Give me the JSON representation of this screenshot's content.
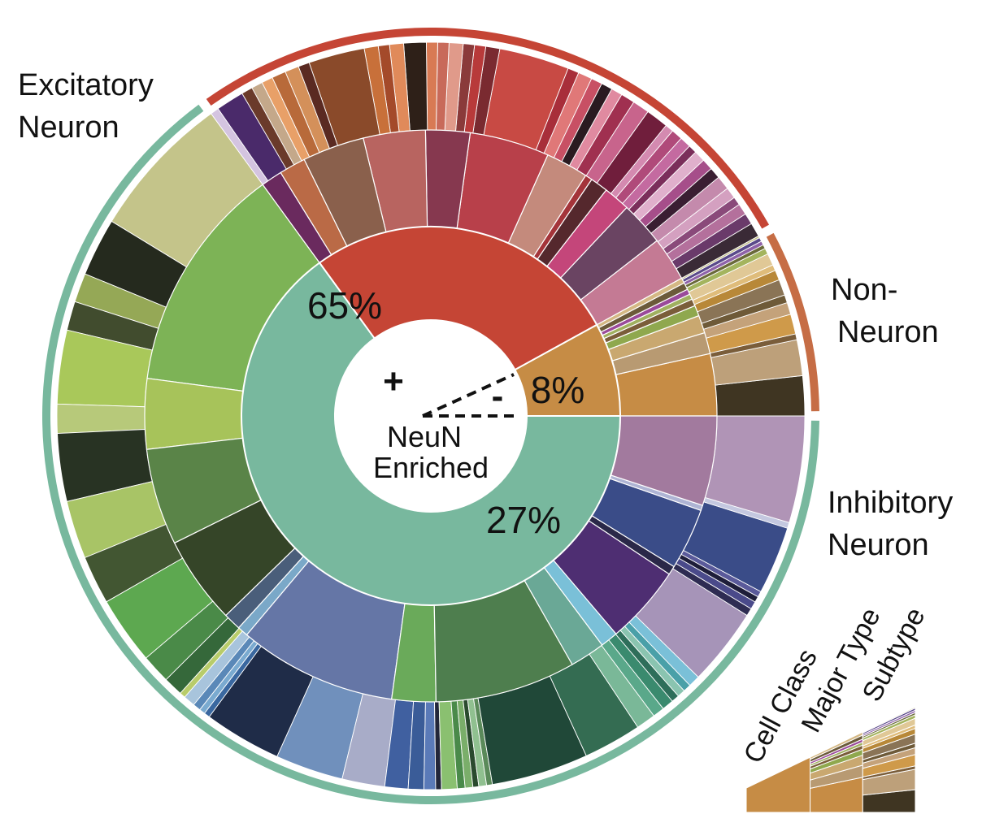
{
  "chart_data": {
    "type": "sunburst",
    "center_label": [
      "NeuN",
      "Enriched"
    ],
    "neun_signs": {
      "positive": "+",
      "negative": "-"
    },
    "class_labels": [
      {
        "id": "exc",
        "text": [
          "Excitatory",
          "Neuron"
        ]
      },
      {
        "id": "non",
        "text": [
          "Non-",
          "Neuron"
        ]
      },
      {
        "id": "inh",
        "text": [
          "Inhibitory",
          "Neuron"
        ]
      }
    ],
    "cell_class": [
      {
        "id": "exc",
        "value": 65,
        "label": "65%",
        "color": "#78b89e",
        "ring_color": "#78b89e"
      },
      {
        "id": "non",
        "value": 8,
        "label": "8%",
        "color": "#c68c45",
        "ring_color": "#c66d45"
      },
      {
        "id": "inh",
        "value": 27,
        "label": "27%",
        "color": "#c54535",
        "ring_color": "#c54535"
      }
    ],
    "legend_levels": [
      "Cell Class",
      "Major Type",
      "Subtype"
    ],
    "major_types": {
      "non": [
        {
          "color": "#c68c45",
          "value": 3.5
        },
        {
          "color": "#b89a72",
          "value": 1.2
        },
        {
          "color": "#c9a870",
          "value": 1.0
        },
        {
          "color": "#8fa84e",
          "value": 0.6
        },
        {
          "color": "#7a5d3a",
          "value": 0.4
        },
        {
          "color": "#a0b060",
          "value": 0.3
        },
        {
          "color": "#9a4a9a",
          "value": 0.3
        },
        {
          "color": "#6b5a3a",
          "value": 0.4
        },
        {
          "color": "#d4b884",
          "value": 0.3
        }
      ],
      "exc": [
        {
          "color": "#7db356",
          "value": 13.0
        },
        {
          "color": "#a7c35a",
          "value": 4.0
        },
        {
          "color": "#5a8448",
          "value": 5.5
        },
        {
          "color": "#354528",
          "value": 5.0
        },
        {
          "color": "#4a5e7a",
          "value": 1.0
        },
        {
          "color": "#7aa8c8",
          "value": 0.6
        },
        {
          "color": "#6576a6",
          "value": 9.0
        },
        {
          "color": "#6aaa5a",
          "value": 2.5
        },
        {
          "color": "#4e7e4e",
          "value": 8.0
        },
        {
          "color": "#6aa896",
          "value": 2.0
        },
        {
          "color": "#7ac0d8",
          "value": 1.0
        },
        {
          "color": "#4e2e72",
          "value": 4.5
        },
        {
          "color": "#2a2848",
          "value": 0.5
        },
        {
          "color": "#3a4c88",
          "value": 3.5
        },
        {
          "color": "#aeb4d4",
          "value": 0.3
        },
        {
          "color": "#a27a9e",
          "value": 5.1
        }
      ],
      "inh": [
        {
          "color": "#c47a94",
          "value": 2.5
        },
        {
          "color": "#6a4462",
          "value": 2.5
        },
        {
          "color": "#c4467a",
          "value": 1.5
        },
        {
          "color": "#55282d",
          "value": 1.0
        },
        {
          "color": "#a4343a",
          "value": 0.4
        },
        {
          "color": "#c48a7c",
          "value": 2.4
        },
        {
          "color": "#b8404a",
          "value": 4.5
        },
        {
          "color": "#86384f",
          "value": 2.5
        },
        {
          "color": "#b86460",
          "value": 3.5
        },
        {
          "color": "#8a604c",
          "value": 3.5
        },
        {
          "color": "#ba6a46",
          "value": 1.5
        },
        {
          "color": "#6a2a5e",
          "value": 1.2
        }
      ]
    },
    "subtypes": {
      "non": [
        {
          "color": "#3f3522",
          "value": 2.0
        },
        {
          "color": "#bda07a",
          "value": 1.8
        },
        {
          "color": "#7a5d3a",
          "value": 0.3
        },
        {
          "color": "#cf9a4a",
          "value": 1.0
        },
        {
          "color": "#c4a27a",
          "value": 0.6
        },
        {
          "color": "#6e5a38",
          "value": 0.4
        },
        {
          "color": "#8a7456",
          "value": 0.8
        },
        {
          "color": "#b88838",
          "value": 0.5
        },
        {
          "color": "#dfbc7a",
          "value": 0.3
        },
        {
          "color": "#e0c896",
          "value": 0.6
        },
        {
          "color": "#a4b45e",
          "value": 0.3
        },
        {
          "color": "#6a6a3a",
          "value": 0.2
        },
        {
          "color": "#8e62a8",
          "value": 0.2
        },
        {
          "color": "#5a4a8a",
          "value": 0.2
        },
        {
          "color": "#c4c08a",
          "value": 0.1
        }
      ],
      "exc": [
        {
          "color": "#c4c48a",
          "value": 7.5
        },
        {
          "color": "#252a1e",
          "value": 3.0
        },
        {
          "color": "#95a856",
          "value": 1.5
        },
        {
          "color": "#414c2e",
          "value": 1.5
        },
        {
          "color": "#a9c85a",
          "value": 3.8
        },
        {
          "color": "#b7c97a",
          "value": 1.5
        },
        {
          "color": "#283323",
          "value": 3.5
        },
        {
          "color": "#a8c466",
          "value": 3.0
        },
        {
          "color": "#425632",
          "value": 2.5
        },
        {
          "color": "#5da850",
          "value": 3.5
        },
        {
          "color": "#4a8a48",
          "value": 1.5
        },
        {
          "color": "#35683a",
          "value": 1.0
        },
        {
          "color": "#b8cc6a",
          "value": 0.3
        },
        {
          "color": "#a8c4dc",
          "value": 0.6
        },
        {
          "color": "#5a88b8",
          "value": 0.4
        },
        {
          "color": "#7aaad0",
          "value": 0.3
        },
        {
          "color": "#3a68a0",
          "value": 0.3
        },
        {
          "color": "#1f2c48",
          "value": 4.0
        },
        {
          "color": "#7090bc",
          "value": 3.5
        },
        {
          "color": "#a8acc8",
          "value": 2.2
        },
        {
          "color": "#4060a0",
          "value": 1.2
        },
        {
          "color": "#3a5c98",
          "value": 0.8
        },
        {
          "color": "#5a7ab8",
          "value": 0.6
        },
        {
          "color": "#22263a",
          "value": 0.3
        },
        {
          "color": "#8ac070",
          "value": 0.8
        },
        {
          "color": "#4a8a4a",
          "value": 0.4
        },
        {
          "color": "#7aae6a",
          "value": 0.4
        },
        {
          "color": "#2a4a2e",
          "value": 0.3
        },
        {
          "color": "#90c090",
          "value": 0.4
        },
        {
          "color": "#5a8a5a",
          "value": 0.3
        },
        {
          "color": "#204838",
          "value": 5.0
        },
        {
          "color": "#346c52",
          "value": 3.0
        },
        {
          "color": "#7ab898",
          "value": 1.0
        },
        {
          "color": "#5aa88a",
          "value": 0.6
        },
        {
          "color": "#3a8a6e",
          "value": 0.6
        },
        {
          "color": "#2e6e5a",
          "value": 0.4
        },
        {
          "color": "#8ac4b0",
          "value": 0.4
        },
        {
          "color": "#4aa0a8",
          "value": 0.4
        },
        {
          "color": "#7ac0d8",
          "value": 0.6
        },
        {
          "color": "#a694b8",
          "value": 4.0
        },
        {
          "color": "#2e2c52",
          "value": 0.4
        },
        {
          "color": "#4a4a8a",
          "value": 0.4
        },
        {
          "color": "#1e1e3a",
          "value": 0.3
        },
        {
          "color": "#5a5a9a",
          "value": 0.3
        },
        {
          "color": "#3a4c88",
          "value": 3.5
        },
        {
          "color": "#c4c8e0",
          "value": 0.3
        },
        {
          "color": "#b094b6",
          "value": 5.5
        }
      ],
      "inh": [
        {
          "color": "#3a2a36",
          "value": 0.5
        },
        {
          "color": "#6a3a6a",
          "value": 0.4
        },
        {
          "color": "#b4709c",
          "value": 0.4
        },
        {
          "color": "#8a4a7a",
          "value": 0.3
        },
        {
          "color": "#d4a0c0",
          "value": 0.4
        },
        {
          "color": "#c48aac",
          "value": 0.5
        },
        {
          "color": "#3a1e32",
          "value": 0.4
        },
        {
          "color": "#a64e8a",
          "value": 0.4
        },
        {
          "color": "#e0b0cc",
          "value": 0.4
        },
        {
          "color": "#7a2e5a",
          "value": 0.3
        },
        {
          "color": "#c46aa0",
          "value": 0.4
        },
        {
          "color": "#b04a7a",
          "value": 0.4
        },
        {
          "color": "#d48ab0",
          "value": 0.3
        },
        {
          "color": "#701e3c",
          "value": 0.8
        },
        {
          "color": "#c8648c",
          "value": 0.6
        },
        {
          "color": "#a03050",
          "value": 0.5
        },
        {
          "color": "#e08aa0",
          "value": 0.4
        },
        {
          "color": "#2a1a20",
          "value": 0.4
        },
        {
          "color": "#c85064",
          "value": 0.4
        },
        {
          "color": "#e07878",
          "value": 0.5
        },
        {
          "color": "#a82e3a",
          "value": 0.4
        },
        {
          "color": "#c84a44",
          "value": 2.5
        },
        {
          "color": "#7a2a30",
          "value": 0.5
        },
        {
          "color": "#b83a3a",
          "value": 0.4
        },
        {
          "color": "#8a3a3a",
          "value": 0.4
        },
        {
          "color": "#e09a8a",
          "value": 0.5
        },
        {
          "color": "#c86a5a",
          "value": 0.4
        },
        {
          "color": "#d87a54",
          "value": 0.4
        },
        {
          "color": "#2e2018",
          "value": 0.8
        },
        {
          "color": "#e08a5a",
          "value": 0.5
        },
        {
          "color": "#a44a2a",
          "value": 0.4
        },
        {
          "color": "#c8703a",
          "value": 0.5
        },
        {
          "color": "#8a4a2a",
          "value": 2.0
        },
        {
          "color": "#5a2a22",
          "value": 0.4
        },
        {
          "color": "#d4905a",
          "value": 0.5
        },
        {
          "color": "#b86a3a",
          "value": 0.5
        },
        {
          "color": "#e8a068",
          "value": 0.4
        },
        {
          "color": "#c4a88a",
          "value": 0.4
        },
        {
          "color": "#6a3a2a",
          "value": 0.4
        },
        {
          "color": "#4a2a6a",
          "value": 1.0
        },
        {
          "color": "#d4c4e0",
          "value": 0.3
        }
      ]
    }
  }
}
